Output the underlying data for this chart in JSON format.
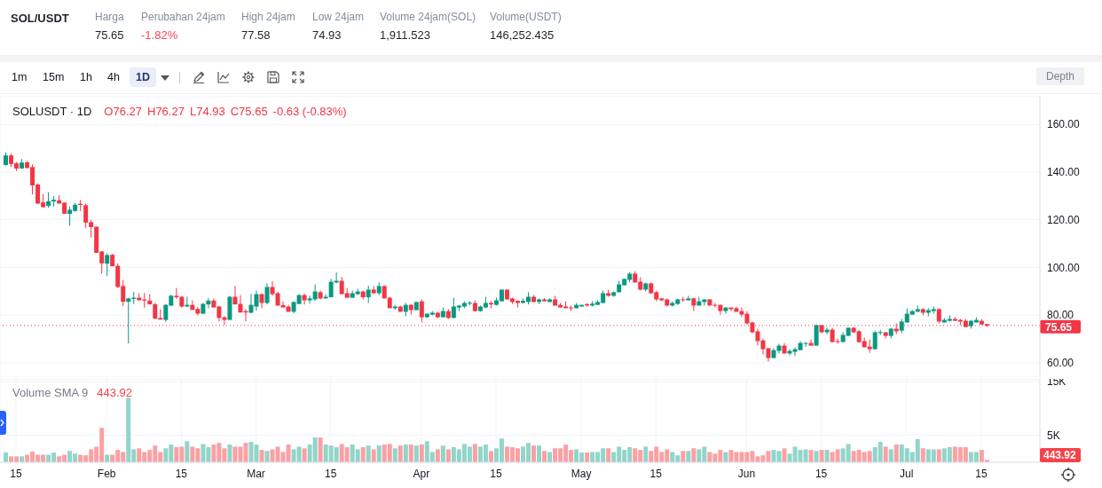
{
  "chart_data": [
    {
      "type": "other",
      "title": "SOL/USDT",
      "annotations": [
        "Harga",
        "75.65",
        "Perubahan 24jam",
        "-1.82%",
        "High 24jam",
        "77.58",
        "Low 24jam",
        "74.93",
        "Volume 24jam(SOL)",
        "1,911.523",
        "Volume(USDT)",
        "146,252.435"
      ]
    },
    {
      "type": "other",
      "annotations": [
        "1m",
        "15m",
        "1h",
        "4h",
        "1D",
        "Depth"
      ]
    },
    {
      "type": "candlestick",
      "title": "SOLUSDT · 1D",
      "annotations": [
        "O76.27",
        "H76.27",
        "L74.93",
        "C75.65",
        "-0.63 (-0.83%)"
      ],
      "x": [
        "--01-13",
        "--01-14",
        "--01-15",
        "--01-16",
        "--01-17",
        "--01-18",
        "--01-19",
        "--01-20",
        "--01-21",
        "--01-22",
        "--01-23",
        "--01-24",
        "--01-25",
        "--01-26",
        "--01-27",
        "--01-28",
        "--01-29",
        "--01-30",
        "--01-31",
        "--02-01",
        "--02-02",
        "--02-03",
        "--02-04",
        "--02-05",
        "--02-06",
        "--02-07",
        "--02-08",
        "--02-09",
        "--02-10",
        "--02-11",
        "--02-12",
        "--02-13",
        "--02-14",
        "--02-15",
        "--02-16",
        "--02-17",
        "--02-18",
        "--02-19",
        "--02-20",
        "--02-21",
        "--02-22",
        "--02-23",
        "--02-24",
        "--02-25",
        "--02-26",
        "--02-27",
        "--02-28",
        "--03-01",
        "--03-02",
        "--03-03",
        "--03-04",
        "--03-05",
        "--03-06",
        "--03-07",
        "--03-08",
        "--03-09",
        "--03-10",
        "--03-11",
        "--03-12",
        "--03-13",
        "--03-14",
        "--03-15",
        "--03-16",
        "--03-17",
        "--03-18",
        "--03-19",
        "--03-20",
        "--03-21",
        "--03-22",
        "--03-23",
        "--03-24",
        "--03-25",
        "--03-26",
        "--03-27",
        "--03-28",
        "--03-29",
        "--03-30",
        "--03-31",
        "--04-01",
        "--04-02",
        "--04-03",
        "--04-04",
        "--04-05",
        "--04-06",
        "--04-07",
        "--04-08",
        "--04-09",
        "--04-10",
        "--04-11",
        "--04-12",
        "--04-13",
        "--04-14",
        "--04-15",
        "--04-16",
        "--04-17",
        "--04-18",
        "--04-19",
        "--04-20",
        "--04-21",
        "--04-22",
        "--04-23",
        "--04-24",
        "--04-25",
        "--04-26",
        "--04-27",
        "--04-28",
        "--04-29",
        "--04-30",
        "--05-01",
        "--05-02",
        "--05-03",
        "--05-04",
        "--05-05",
        "--05-06",
        "--05-07",
        "--05-08",
        "--05-09",
        "--05-10",
        "--05-11",
        "--05-12",
        "--05-13",
        "--05-14",
        "--05-15",
        "--05-16",
        "--05-17",
        "--05-18",
        "--05-19",
        "--05-20",
        "--05-21",
        "--05-22",
        "--05-23",
        "--05-24",
        "--05-25",
        "--05-26",
        "--05-27",
        "--05-28",
        "--05-29",
        "--05-30",
        "--05-31",
        "--06-01",
        "--06-02",
        "--06-03",
        "--06-04",
        "--06-05",
        "--06-06",
        "--06-07",
        "--06-08",
        "--06-09",
        "--06-10",
        "--06-11",
        "--06-12",
        "--06-13",
        "--06-14",
        "--06-15",
        "--06-16",
        "--06-17",
        "--06-18",
        "--06-19",
        "--06-20",
        "--06-21",
        "--06-22",
        "--06-23",
        "--06-24",
        "--06-25",
        "--06-26",
        "--06-27",
        "--06-28",
        "--06-29",
        "--06-30",
        "--07-01",
        "--07-02",
        "--07-03",
        "--07-04",
        "--07-05",
        "--07-06",
        "--07-07",
        "--07-08",
        "--07-09",
        "--07-10",
        "--07-11",
        "--07-12",
        "--07-13",
        "--07-14",
        "--07-15",
        "--07-16"
      ],
      "ohlc": [
        [
          143.0,
          148.3,
          142.7,
          147.0
        ],
        [
          147.0,
          147.7,
          142.1,
          143.4
        ],
        [
          143.7,
          144.2,
          140.5,
          141.5
        ],
        [
          141.5,
          145.5,
          141.5,
          144.0
        ],
        [
          144.1,
          144.7,
          141.7,
          141.7
        ],
        [
          142.1,
          143.2,
          130.6,
          134.4
        ],
        [
          134.8,
          135.2,
          126.6,
          126.8
        ],
        [
          127.3,
          130.8,
          125.1,
          125.3
        ],
        [
          125.8,
          131.6,
          125.1,
          127.8
        ],
        [
          127.7,
          129.9,
          125.5,
          128.4
        ],
        [
          128.2,
          130.3,
          126.8,
          126.8
        ],
        [
          127.2,
          127.2,
          122.5,
          122.5
        ],
        [
          122.5,
          125.6,
          117.5,
          124.2
        ],
        [
          123.7,
          127.1,
          123.4,
          126.3
        ],
        [
          126.7,
          128.3,
          123.7,
          126.2
        ],
        [
          126.1,
          126.8,
          116.6,
          118.8
        ],
        [
          119.0,
          120.0,
          112.5,
          116.9
        ],
        [
          117.1,
          117.1,
          106.1,
          106.1
        ],
        [
          106.7,
          106.7,
          97.4,
          101.7
        ],
        [
          101.6,
          106.0,
          96.4,
          105.2
        ],
        [
          105.3,
          105.7,
          100.5,
          100.5
        ],
        [
          100.7,
          101.7,
          91.4,
          91.8
        ],
        [
          92.2,
          94.8,
          83.7,
          85.6
        ],
        [
          85.6,
          87.3,
          68.1,
          87.0
        ],
        [
          86.8,
          89.8,
          84.6,
          87.3
        ],
        [
          87.3,
          89.1,
          85.8,
          86.3
        ],
        [
          86.6,
          89.2,
          83.1,
          86.1
        ],
        [
          86.1,
          88.8,
          84.5,
          84.5
        ],
        [
          84.6,
          85.1,
          78.5,
          78.5
        ],
        [
          78.8,
          82.5,
          78.1,
          78.1
        ],
        [
          78.0,
          84.6,
          77.1,
          84.3
        ],
        [
          84.0,
          88.6,
          83.7,
          88.1
        ],
        [
          88.1,
          91.4,
          86.8,
          87.5
        ],
        [
          87.7,
          88.1,
          83.1,
          83.6
        ],
        [
          83.6,
          87.7,
          83.4,
          84.3
        ],
        [
          84.3,
          86.2,
          82.2,
          82.2
        ],
        [
          82.6,
          83.4,
          79.9,
          80.6
        ],
        [
          80.6,
          85.1,
          80.4,
          84.7
        ],
        [
          84.5,
          87.1,
          82.9,
          86.1
        ],
        [
          86.1,
          87.0,
          83.2,
          83.2
        ],
        [
          83.6,
          84.0,
          77.4,
          78.8
        ],
        [
          79.1,
          79.6,
          75.9,
          78.0
        ],
        [
          78.0,
          88.1,
          77.8,
          87.7
        ],
        [
          87.7,
          92.3,
          84.5,
          84.5
        ],
        [
          84.7,
          88.4,
          81.1,
          81.1
        ],
        [
          81.7,
          82.5,
          77.4,
          81.1
        ],
        [
          81.0,
          88.9,
          80.7,
          84.3
        ],
        [
          83.6,
          90.3,
          81.9,
          88.8
        ],
        [
          88.8,
          89.1,
          82.9,
          85.1
        ],
        [
          85.1,
          93.3,
          84.5,
          91.8
        ],
        [
          91.8,
          94.2,
          88.2,
          88.8
        ],
        [
          89.2,
          89.8,
          84.0,
          84.0
        ],
        [
          84.2,
          85.8,
          83.2,
          83.2
        ],
        [
          83.6,
          84.3,
          81.4,
          81.4
        ],
        [
          81.4,
          85.8,
          80.7,
          85.5
        ],
        [
          84.7,
          88.8,
          84.5,
          88.4
        ],
        [
          88.4,
          89.1,
          84.5,
          86.2
        ],
        [
          86.2,
          88.1,
          84.8,
          87.0
        ],
        [
          86.6,
          92.9,
          86.0,
          89.9
        ],
        [
          89.6,
          90.3,
          86.6,
          87.0
        ],
        [
          87.0,
          88.8,
          87.0,
          87.7
        ],
        [
          87.5,
          95.2,
          87.5,
          94.0
        ],
        [
          93.7,
          97.9,
          93.3,
          94.4
        ],
        [
          94.4,
          96.0,
          88.8,
          88.8
        ],
        [
          89.2,
          91.4,
          87.3,
          87.3
        ],
        [
          87.3,
          90.3,
          87.3,
          89.2
        ],
        [
          88.8,
          91.1,
          88.4,
          89.9
        ],
        [
          89.9,
          90.3,
          86.6,
          87.5
        ],
        [
          87.5,
          92.3,
          85.1,
          90.7
        ],
        [
          90.7,
          92.2,
          88.8,
          89.2
        ],
        [
          89.2,
          93.7,
          88.4,
          92.2
        ],
        [
          92.2,
          92.5,
          87.0,
          87.0
        ],
        [
          87.3,
          87.7,
          82.9,
          82.9
        ],
        [
          82.9,
          84.3,
          82.2,
          83.6
        ],
        [
          83.6,
          84.0,
          81.4,
          81.4
        ],
        [
          81.4,
          85.1,
          79.5,
          84.3
        ],
        [
          84.3,
          84.7,
          80.2,
          82.1
        ],
        [
          82.1,
          85.5,
          82.1,
          85.5
        ],
        [
          85.8,
          86.6,
          76.9,
          79.1
        ],
        [
          79.1,
          80.6,
          78.8,
          80.6
        ],
        [
          80.2,
          81.7,
          79.9,
          81.0
        ],
        [
          81.0,
          81.4,
          78.8,
          79.1
        ],
        [
          79.1,
          83.2,
          79.1,
          81.7
        ],
        [
          81.7,
          82.5,
          78.4,
          78.8
        ],
        [
          78.8,
          87.3,
          78.8,
          83.6
        ],
        [
          83.2,
          84.3,
          81.7,
          84.0
        ],
        [
          83.6,
          85.8,
          82.9,
          85.1
        ],
        [
          84.8,
          85.8,
          84.0,
          85.2
        ],
        [
          85.1,
          86.2,
          81.4,
          81.7
        ],
        [
          81.7,
          84.0,
          81.4,
          83.6
        ],
        [
          83.2,
          87.7,
          82.9,
          85.1
        ],
        [
          85.1,
          85.8,
          82.9,
          84.5
        ],
        [
          84.3,
          87.3,
          84.0,
          86.2
        ],
        [
          85.8,
          90.7,
          85.8,
          90.7
        ],
        [
          90.7,
          90.7,
          86.6,
          86.6
        ],
        [
          87.0,
          87.3,
          84.7,
          85.5
        ],
        [
          86.0,
          86.2,
          83.2,
          85.1
        ],
        [
          85.1,
          87.0,
          85.1,
          86.0
        ],
        [
          85.5,
          89.6,
          84.5,
          87.7
        ],
        [
          87.7,
          88.4,
          85.5,
          85.5
        ],
        [
          85.5,
          87.0,
          84.7,
          86.6
        ],
        [
          86.6,
          87.1,
          85.8,
          85.8
        ],
        [
          85.5,
          87.0,
          85.5,
          86.6
        ],
        [
          86.6,
          88.1,
          84.0,
          84.0
        ],
        [
          84.3,
          85.1,
          83.2,
          83.2
        ],
        [
          83.6,
          85.8,
          82.9,
          82.9
        ],
        [
          83.2,
          84.0,
          81.7,
          82.9
        ],
        [
          82.9,
          85.1,
          82.9,
          84.3
        ],
        [
          83.6,
          84.3,
          83.6,
          84.3
        ],
        [
          84.6,
          85.1,
          83.6,
          84.0
        ],
        [
          84.0,
          85.8,
          83.6,
          84.8
        ],
        [
          84.3,
          86.2,
          84.3,
          85.5
        ],
        [
          85.1,
          90.3,
          85.1,
          89.2
        ],
        [
          89.2,
          90.7,
          87.7,
          88.1
        ],
        [
          88.1,
          89.9,
          87.7,
          89.6
        ],
        [
          89.6,
          94.4,
          89.6,
          92.9
        ],
        [
          92.5,
          95.2,
          92.5,
          95.2
        ],
        [
          94.8,
          98.1,
          93.7,
          97.4
        ],
        [
          97.4,
          98.5,
          93.7,
          93.7
        ],
        [
          94.0,
          95.9,
          90.3,
          90.7
        ],
        [
          90.7,
          93.7,
          89.9,
          93.3
        ],
        [
          93.3,
          93.7,
          88.8,
          89.2
        ],
        [
          89.6,
          90.3,
          85.8,
          86.6
        ],
        [
          87.0,
          87.3,
          85.8,
          86.2
        ],
        [
          86.6,
          87.0,
          83.6,
          84.0
        ],
        [
          84.0,
          85.8,
          83.6,
          85.1
        ],
        [
          84.7,
          87.0,
          84.3,
          86.6
        ],
        [
          86.6,
          87.7,
          85.5,
          86.3
        ],
        [
          86.2,
          88.1,
          86.2,
          87.0
        ],
        [
          87.0,
          87.3,
          81.7,
          84.0
        ],
        [
          84.0,
          87.7,
          84.0,
          85.8
        ],
        [
          85.5,
          86.6,
          84.0,
          86.6
        ],
        [
          86.6,
          86.6,
          84.0,
          84.0
        ],
        [
          84.3,
          85.1,
          83.2,
          84.0
        ],
        [
          84.3,
          84.3,
          80.2,
          81.7
        ],
        [
          81.7,
          83.2,
          80.6,
          83.2
        ],
        [
          83.2,
          83.2,
          81.7,
          82.5
        ],
        [
          82.9,
          83.6,
          81.4,
          81.4
        ],
        [
          81.7,
          83.2,
          79.1,
          80.2
        ],
        [
          80.6,
          81.7,
          76.1,
          76.5
        ],
        [
          76.9,
          77.3,
          72.4,
          72.8
        ],
        [
          73.2,
          74.3,
          67.2,
          69.1
        ],
        [
          69.4,
          70.2,
          63.5,
          65.7
        ],
        [
          66.1,
          66.1,
          60.5,
          62.0
        ],
        [
          62.0,
          66.1,
          62.0,
          65.3
        ],
        [
          65.0,
          68.0,
          63.9,
          67.2
        ],
        [
          67.2,
          68.3,
          63.9,
          63.9
        ],
        [
          63.9,
          65.7,
          63.1,
          65.0
        ],
        [
          64.6,
          66.5,
          62.8,
          65.7
        ],
        [
          65.3,
          69.1,
          65.3,
          68.3
        ],
        [
          68.0,
          68.7,
          66.8,
          68.3
        ],
        [
          68.3,
          69.8,
          67.2,
          67.2
        ],
        [
          67.2,
          76.1,
          67.2,
          75.8
        ],
        [
          75.8,
          75.8,
          72.4,
          72.8
        ],
        [
          72.8,
          74.7,
          72.0,
          73.9
        ],
        [
          73.9,
          74.7,
          68.7,
          68.7
        ],
        [
          69.1,
          70.2,
          68.0,
          68.7
        ],
        [
          68.7,
          72.8,
          68.7,
          71.7
        ],
        [
          71.3,
          74.7,
          71.3,
          74.7
        ],
        [
          74.7,
          75.0,
          72.4,
          72.8
        ],
        [
          73.2,
          73.9,
          68.3,
          68.7
        ],
        [
          69.1,
          70.6,
          66.5,
          66.5
        ],
        [
          66.8,
          69.8,
          64.2,
          65.7
        ],
        [
          65.7,
          73.5,
          65.7,
          72.8
        ],
        [
          72.5,
          73.9,
          71.7,
          72.9
        ],
        [
          72.8,
          72.8,
          70.2,
          71.3
        ],
        [
          71.3,
          74.7,
          70.2,
          74.3
        ],
        [
          74.3,
          76.5,
          72.0,
          73.2
        ],
        [
          73.5,
          78.4,
          72.4,
          77.3
        ],
        [
          76.9,
          82.9,
          76.9,
          80.6
        ],
        [
          80.2,
          82.1,
          80.2,
          81.7
        ],
        [
          81.4,
          84.0,
          81.4,
          82.5
        ],
        [
          82.5,
          82.9,
          79.9,
          81.0
        ],
        [
          81.0,
          82.9,
          79.5,
          82.1
        ],
        [
          81.7,
          83.6,
          80.6,
          82.5
        ],
        [
          82.5,
          82.9,
          76.5,
          77.3
        ],
        [
          76.9,
          78.8,
          76.9,
          78.0
        ],
        [
          77.6,
          79.9,
          77.3,
          78.4
        ],
        [
          78.4,
          79.1,
          77.6,
          77.6
        ],
        [
          78.0,
          78.4,
          75.8,
          77.3
        ],
        [
          77.6,
          78.4,
          75.0,
          75.0
        ],
        [
          75.4,
          78.0,
          74.3,
          77.6
        ],
        [
          76.9,
          79.1,
          76.9,
          78.0
        ],
        [
          77.6,
          78.4,
          75.8,
          76.1
        ],
        [
          76.27,
          76.27,
          74.93,
          75.65
        ]
      ],
      "colors": [
        "#089981",
        "#f23645",
        "#f23645",
        "#089981",
        "#f23645",
        "#f23645",
        "#f23645",
        "#f23645",
        "#089981",
        "#089981",
        "#f23645",
        "#f23645",
        "#089981",
        "#089981",
        "#f23645",
        "#f23645",
        "#f23645",
        "#f23645",
        "#f23645",
        "#089981",
        "#f23645",
        "#f23645",
        "#f23645",
        "#089981",
        "#089981",
        "#f23645",
        "#f23645",
        "#f23645",
        "#f23645",
        "#f23645",
        "#089981",
        "#089981",
        "#f23645",
        "#f23645",
        "#089981",
        "#f23645",
        "#f23645",
        "#089981",
        "#089981",
        "#f23645",
        "#f23645",
        "#f23645",
        "#089981",
        "#f23645",
        "#f23645",
        "#f23645",
        "#089981",
        "#089981",
        "#f23645",
        "#089981",
        "#f23645",
        "#f23645",
        "#f23645",
        "#f23645",
        "#089981",
        "#089981",
        "#f23645",
        "#089981",
        "#089981",
        "#f23645",
        "#089981",
        "#089981",
        "#089981",
        "#f23645",
        "#f23645",
        "#089981",
        "#089981",
        "#f23645",
        "#089981",
        "#f23645",
        "#089981",
        "#f23645",
        "#f23645",
        "#089981",
        "#f23645",
        "#089981",
        "#f23645",
        "#089981",
        "#f23645",
        "#089981",
        "#089981",
        "#f23645",
        "#089981",
        "#f23645",
        "#089981",
        "#089981",
        "#089981",
        "#089981",
        "#f23645",
        "#089981",
        "#089981",
        "#f23645",
        "#089981",
        "#089981",
        "#f23645",
        "#f23645",
        "#f23645",
        "#089981",
        "#089981",
        "#f23645",
        "#089981",
        "#f23645",
        "#089981",
        "#f23645",
        "#f23645",
        "#f23645",
        "#f23645",
        "#089981",
        "#089981",
        "#f23645",
        "#089981",
        "#089981",
        "#089981",
        "#f23645",
        "#089981",
        "#089981",
        "#089981",
        "#089981",
        "#f23645",
        "#f23645",
        "#089981",
        "#f23645",
        "#f23645",
        "#f23645",
        "#f23645",
        "#089981",
        "#089981",
        "#f23645",
        "#089981",
        "#f23645",
        "#089981",
        "#089981",
        "#f23645",
        "#f23645",
        "#f23645",
        "#089981",
        "#f23645",
        "#f23645",
        "#f23645",
        "#f23645",
        "#f23645",
        "#f23645",
        "#f23645",
        "#f23645",
        "#089981",
        "#089981",
        "#f23645",
        "#089981",
        "#089981",
        "#089981",
        "#089981",
        "#f23645",
        "#089981",
        "#f23645",
        "#089981",
        "#f23645",
        "#f23645",
        "#089981",
        "#089981",
        "#f23645",
        "#f23645",
        "#f23645",
        "#f23645",
        "#089981",
        "#089981",
        "#f23645",
        "#089981",
        "#f23645",
        "#089981",
        "#089981",
        "#089981",
        "#089981",
        "#f23645",
        "#089981",
        "#089981",
        "#f23645",
        "#089981",
        "#089981",
        "#f23645",
        "#f23645",
        "#f23645",
        "#089981",
        "#089981",
        "#f23645",
        "#f23645"
      ],
      "xlim": [
        "--01-12",
        "--07-26"
      ],
      "xticks": [
        {
          "value": "--01-15",
          "label": "15"
        },
        {
          "value": "--02-01",
          "label": "Feb"
        },
        {
          "value": "--02-15",
          "label": "15"
        },
        {
          "value": "--03-01",
          "label": "Mar"
        },
        {
          "value": "--03-15",
          "label": "15"
        },
        {
          "value": "--04-01",
          "label": "Apr"
        },
        {
          "value": "--04-15",
          "label": "15"
        },
        {
          "value": "--05-01",
          "label": "May"
        },
        {
          "value": "--05-15",
          "label": "15"
        },
        {
          "value": "--06-01",
          "label": "Jun"
        },
        {
          "value": "--06-15",
          "label": "15"
        },
        {
          "value": "--07-01",
          "label": "Jul"
        },
        {
          "value": "--07-15",
          "label": "15"
        }
      ],
      "ylim": [
        54,
        172
      ],
      "yticks": [
        {
          "value": 60,
          "label": "60.00"
        },
        {
          "value": 80,
          "label": "80.00"
        },
        {
          "value": 100,
          "label": "100.00"
        },
        {
          "value": 120,
          "label": "120.00"
        },
        {
          "value": 140,
          "label": "140.00"
        },
        {
          "value": 160,
          "label": "160.00"
        }
      ],
      "grid": true,
      "tick_labels": "y",
      "ref_lines": [
        {
          "axis": "y",
          "value": 75.65,
          "label": "75.65",
          "color": "#f23645",
          "line_style": "dotted"
        }
      ]
    },
    {
      "type": "bar",
      "title": "Volume SMA 9",
      "annotations": [
        "443.92",
        "443.92"
      ],
      "x": [
        "--01-13",
        "--01-14",
        "--01-15",
        "--01-16",
        "--01-17",
        "--01-18",
        "--01-19",
        "--01-20",
        "--01-21",
        "--01-22",
        "--01-23",
        "--01-24",
        "--01-25",
        "--01-26",
        "--01-27",
        "--01-28",
        "--01-29",
        "--01-30",
        "--01-31",
        "--02-01",
        "--02-02",
        "--02-03",
        "--02-04",
        "--02-05",
        "--02-06",
        "--02-07",
        "--02-08",
        "--02-09",
        "--02-10",
        "--02-11",
        "--02-12",
        "--02-13",
        "--02-14",
        "--02-15",
        "--02-16",
        "--02-17",
        "--02-18",
        "--02-19",
        "--02-20",
        "--02-21",
        "--02-22",
        "--02-23",
        "--02-24",
        "--02-25",
        "--02-26",
        "--02-27",
        "--02-28",
        "--03-01",
        "--03-02",
        "--03-03",
        "--03-04",
        "--03-05",
        "--03-06",
        "--03-07",
        "--03-08",
        "--03-09",
        "--03-10",
        "--03-11",
        "--03-12",
        "--03-13",
        "--03-14",
        "--03-15",
        "--03-16",
        "--03-17",
        "--03-18",
        "--03-19",
        "--03-20",
        "--03-21",
        "--03-22",
        "--03-23",
        "--03-24",
        "--03-25",
        "--03-26",
        "--03-27",
        "--03-28",
        "--03-29",
        "--03-30",
        "--03-31",
        "--04-01",
        "--04-02",
        "--04-03",
        "--04-04",
        "--04-05",
        "--04-06",
        "--04-07",
        "--04-08",
        "--04-09",
        "--04-10",
        "--04-11",
        "--04-12",
        "--04-13",
        "--04-14",
        "--04-15",
        "--04-16",
        "--04-17",
        "--04-18",
        "--04-19",
        "--04-20",
        "--04-21",
        "--04-22",
        "--04-23",
        "--04-24",
        "--04-25",
        "--04-26",
        "--04-27",
        "--04-28",
        "--04-29",
        "--04-30",
        "--05-01",
        "--05-02",
        "--05-03",
        "--05-04",
        "--05-05",
        "--05-06",
        "--05-07",
        "--05-08",
        "--05-09",
        "--05-10",
        "--05-11",
        "--05-12",
        "--05-13",
        "--05-14",
        "--05-15",
        "--05-16",
        "--05-17",
        "--05-18",
        "--05-19",
        "--05-20",
        "--05-21",
        "--05-22",
        "--05-23",
        "--05-24",
        "--05-25",
        "--05-26",
        "--05-27",
        "--05-28",
        "--05-29",
        "--05-30",
        "--05-31",
        "--06-01",
        "--06-02",
        "--06-03",
        "--06-04",
        "--06-05",
        "--06-06",
        "--06-07",
        "--06-08",
        "--06-09",
        "--06-10",
        "--06-11",
        "--06-12",
        "--06-13",
        "--06-14",
        "--06-15",
        "--06-16",
        "--06-17",
        "--06-18",
        "--06-19",
        "--06-20",
        "--06-21",
        "--06-22",
        "--06-23",
        "--06-24",
        "--06-25",
        "--06-26",
        "--06-27",
        "--06-28",
        "--06-29",
        "--06-30",
        "--07-01",
        "--07-02",
        "--07-03",
        "--07-04",
        "--07-05",
        "--07-06",
        "--07-07",
        "--07-08",
        "--07-09",
        "--07-10",
        "--07-11",
        "--07-12",
        "--07-13",
        "--07-14",
        "--07-15",
        "--07-16"
      ],
      "values": [
        1800,
        1100,
        1100,
        1100,
        1400,
        2000,
        1400,
        1400,
        1400,
        1800,
        1100,
        1400,
        2100,
        1600,
        1400,
        1300,
        2400,
        2900,
        6400,
        1400,
        1400,
        2300,
        1900,
        12000,
        2400,
        2600,
        1900,
        2300,
        3100,
        1900,
        2600,
        3300,
        2800,
        2900,
        3900,
        2900,
        2600,
        3400,
        2800,
        3300,
        3600,
        2600,
        3300,
        2900,
        2900,
        3600,
        3800,
        3300,
        2300,
        2100,
        2400,
        2900,
        1900,
        3300,
        2400,
        2900,
        2600,
        3300,
        4600,
        4600,
        3300,
        3100,
        2800,
        3400,
        2800,
        3300,
        2400,
        2800,
        3100,
        2400,
        3100,
        3300,
        3400,
        2600,
        3100,
        3300,
        3300,
        3100,
        3300,
        3900,
        1900,
        2400,
        3100,
        2400,
        2800,
        2400,
        3400,
        2900,
        3400,
        2900,
        3300,
        2100,
        2600,
        4400,
        2900,
        2800,
        2600,
        2900,
        3600,
        3100,
        3100,
        2100,
        1900,
        2600,
        2600,
        3300,
        2300,
        2400,
        1800,
        1800,
        1900,
        1900,
        2600,
        2600,
        1900,
        2900,
        2300,
        2800,
        2600,
        2300,
        2900,
        2100,
        2900,
        1900,
        2400,
        1900,
        1300,
        2100,
        2100,
        2600,
        2400,
        2900,
        1900,
        1600,
        2300,
        1900,
        2300,
        1900,
        1900,
        1900,
        2100,
        1100,
        1300,
        2100,
        2300,
        2100,
        2600,
        1600,
        2900,
        2300,
        2400,
        2300,
        2100,
        2300,
        2300,
        1900,
        2400,
        2600,
        3400,
        2100,
        2300,
        1900,
        2100,
        2800,
        3800,
        2900,
        2400,
        3300,
        3300,
        2600,
        1900,
        4300,
        2600,
        2400,
        2400,
        2400,
        2600,
        2800,
        2900,
        2800,
        2800,
        1900,
        1900,
        2300,
        443.92
      ],
      "colors": [
        "#92d5ca",
        "#faa1a4",
        "#faa1a4",
        "#92d5ca",
        "#faa1a4",
        "#faa1a4",
        "#faa1a4",
        "#faa1a4",
        "#92d5ca",
        "#92d5ca",
        "#faa1a4",
        "#faa1a4",
        "#92d5ca",
        "#92d5ca",
        "#faa1a4",
        "#faa1a4",
        "#faa1a4",
        "#faa1a4",
        "#faa1a4",
        "#92d5ca",
        "#faa1a4",
        "#faa1a4",
        "#faa1a4",
        "#92d5ca",
        "#92d5ca",
        "#faa1a4",
        "#faa1a4",
        "#faa1a4",
        "#faa1a4",
        "#faa1a4",
        "#92d5ca",
        "#92d5ca",
        "#faa1a4",
        "#faa1a4",
        "#92d5ca",
        "#faa1a4",
        "#faa1a4",
        "#92d5ca",
        "#92d5ca",
        "#faa1a4",
        "#faa1a4",
        "#faa1a4",
        "#92d5ca",
        "#faa1a4",
        "#faa1a4",
        "#faa1a4",
        "#92d5ca",
        "#92d5ca",
        "#faa1a4",
        "#92d5ca",
        "#faa1a4",
        "#faa1a4",
        "#faa1a4",
        "#faa1a4",
        "#92d5ca",
        "#92d5ca",
        "#faa1a4",
        "#92d5ca",
        "#92d5ca",
        "#faa1a4",
        "#92d5ca",
        "#92d5ca",
        "#92d5ca",
        "#faa1a4",
        "#faa1a4",
        "#92d5ca",
        "#92d5ca",
        "#faa1a4",
        "#92d5ca",
        "#faa1a4",
        "#92d5ca",
        "#faa1a4",
        "#faa1a4",
        "#92d5ca",
        "#faa1a4",
        "#92d5ca",
        "#faa1a4",
        "#92d5ca",
        "#faa1a4",
        "#92d5ca",
        "#92d5ca",
        "#faa1a4",
        "#92d5ca",
        "#faa1a4",
        "#92d5ca",
        "#92d5ca",
        "#92d5ca",
        "#92d5ca",
        "#faa1a4",
        "#92d5ca",
        "#92d5ca",
        "#faa1a4",
        "#92d5ca",
        "#92d5ca",
        "#faa1a4",
        "#faa1a4",
        "#faa1a4",
        "#92d5ca",
        "#92d5ca",
        "#faa1a4",
        "#92d5ca",
        "#faa1a4",
        "#92d5ca",
        "#faa1a4",
        "#faa1a4",
        "#faa1a4",
        "#faa1a4",
        "#92d5ca",
        "#92d5ca",
        "#faa1a4",
        "#92d5ca",
        "#92d5ca",
        "#92d5ca",
        "#faa1a4",
        "#92d5ca",
        "#92d5ca",
        "#92d5ca",
        "#92d5ca",
        "#faa1a4",
        "#faa1a4",
        "#92d5ca",
        "#faa1a4",
        "#faa1a4",
        "#faa1a4",
        "#faa1a4",
        "#92d5ca",
        "#92d5ca",
        "#faa1a4",
        "#92d5ca",
        "#faa1a4",
        "#92d5ca",
        "#92d5ca",
        "#faa1a4",
        "#faa1a4",
        "#faa1a4",
        "#92d5ca",
        "#faa1a4",
        "#faa1a4",
        "#faa1a4",
        "#faa1a4",
        "#faa1a4",
        "#faa1a4",
        "#faa1a4",
        "#faa1a4",
        "#92d5ca",
        "#92d5ca",
        "#faa1a4",
        "#92d5ca",
        "#92d5ca",
        "#92d5ca",
        "#92d5ca",
        "#faa1a4",
        "#92d5ca",
        "#faa1a4",
        "#92d5ca",
        "#faa1a4",
        "#faa1a4",
        "#92d5ca",
        "#92d5ca",
        "#faa1a4",
        "#faa1a4",
        "#faa1a4",
        "#faa1a4",
        "#92d5ca",
        "#92d5ca",
        "#faa1a4",
        "#92d5ca",
        "#faa1a4",
        "#92d5ca",
        "#92d5ca",
        "#92d5ca",
        "#92d5ca",
        "#faa1a4",
        "#92d5ca",
        "#92d5ca",
        "#faa1a4",
        "#92d5ca",
        "#92d5ca",
        "#faa1a4",
        "#faa1a4",
        "#faa1a4",
        "#92d5ca",
        "#92d5ca",
        "#faa1a4",
        "#faa1a4"
      ],
      "xlim": [
        "--01-12",
        "--07-26"
      ],
      "xticks": [
        {
          "value": "--01-15",
          "label": "15"
        },
        {
          "value": "--02-01",
          "label": "Feb"
        },
        {
          "value": "--02-15",
          "label": "15"
        },
        {
          "value": "--03-01",
          "label": "Mar"
        },
        {
          "value": "--03-15",
          "label": "15"
        },
        {
          "value": "--04-01",
          "label": "Apr"
        },
        {
          "value": "--04-15",
          "label": "15"
        },
        {
          "value": "--05-01",
          "label": "May"
        },
        {
          "value": "--05-15",
          "label": "15"
        },
        {
          "value": "--06-01",
          "label": "Jun"
        },
        {
          "value": "--06-15",
          "label": "15"
        },
        {
          "value": "--07-01",
          "label": "Jul"
        },
        {
          "value": "--07-15",
          "label": "15"
        }
      ],
      "ylim": [
        0,
        15500
      ],
      "yticks": [
        {
          "value": 5000,
          "label": "5K"
        },
        {
          "value": 15000,
          "label": "15K"
        }
      ],
      "grid": true
    }
  ]
}
